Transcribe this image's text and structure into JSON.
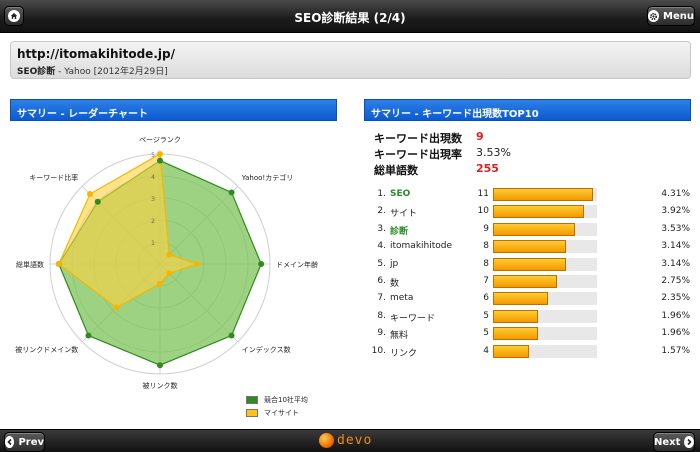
{
  "header": {
    "title": "SEO診断結果 (2/4)",
    "menu_label": "Menu"
  },
  "site": {
    "url": "http://itomakihitode.jp/",
    "subtitle_label": "SEO診断",
    "subtitle_detail": " - Yahoo [2012年2月29日]"
  },
  "sections": {
    "radar_title": "サマリー - レーダーチャート",
    "keywords_title": "サマリー - キーワード出現数TOP10"
  },
  "chart_data": {
    "type": "radar",
    "categories": [
      "ページランク",
      "Yahoo!カテゴリ",
      "ドメイン年齢",
      "インデックス数",
      "被リンク数",
      "被リンクドメイン数",
      "総単語数",
      "キーワード比率"
    ],
    "ticks": [
      "1",
      "2",
      "3",
      "4",
      "5"
    ],
    "rmax": 5,
    "series": [
      {
        "name": "競合10社平均",
        "values": [
          4.7,
          4.6,
          4.6,
          4.6,
          4.6,
          4.6,
          4.6,
          4.0
        ],
        "color": "#2f8a1f",
        "fill": "#7cc35a"
      },
      {
        "name": "マイサイト",
        "values": [
          5.0,
          0.6,
          1.7,
          0.6,
          0.9,
          2.8,
          4.6,
          4.5
        ],
        "color": "#f7b500",
        "fill": "#ffd23f"
      }
    ]
  },
  "stats": [
    {
      "label": "キーワード出現数",
      "value": "9",
      "highlight": true
    },
    {
      "label": "キーワード出現率",
      "value": "3.53%",
      "highlight": false
    },
    {
      "label": "総単語数",
      "value": "255",
      "highlight": true
    }
  ],
  "keywords": {
    "max_count": 11,
    "rows": [
      {
        "rank": "1.",
        "word": "SEO",
        "count": 11,
        "count_label": "11",
        "pct": "4.31%",
        "is_keyword": true
      },
      {
        "rank": "2.",
        "word": "サイト",
        "count": 10,
        "count_label": "10",
        "pct": "3.92%",
        "is_keyword": false
      },
      {
        "rank": "3.",
        "word": "診断",
        "count": 9,
        "count_label": "9",
        "pct": "3.53%",
        "is_keyword": true
      },
      {
        "rank": "4.",
        "word": "itomakihitode",
        "count": 8,
        "count_label": "8",
        "pct": "3.14%",
        "is_keyword": false
      },
      {
        "rank": "5.",
        "word": "jp",
        "count": 8,
        "count_label": "8",
        "pct": "3.14%",
        "is_keyword": false
      },
      {
        "rank": "6.",
        "word": "数",
        "count": 7,
        "count_label": "7",
        "pct": "2.75%",
        "is_keyword": false
      },
      {
        "rank": "7.",
        "word": "meta",
        "count": 6,
        "count_label": "6",
        "pct": "2.35%",
        "is_keyword": false
      },
      {
        "rank": "8.",
        "word": "キーワード",
        "count": 5,
        "count_label": "5",
        "pct": "1.96%",
        "is_keyword": false
      },
      {
        "rank": "9.",
        "word": "無料",
        "count": 5,
        "count_label": "5",
        "pct": "1.96%",
        "is_keyword": false
      },
      {
        "rank": "10.",
        "word": "リンク",
        "count": 4,
        "count_label": "4",
        "pct": "1.57%",
        "is_keyword": false
      }
    ]
  },
  "footer": {
    "prev_label": "Prev",
    "next_label": "Next",
    "logo_text": "devo"
  },
  "icons": {
    "home": "home-icon",
    "menu": "gear-icon",
    "prev": "chevron-left-icon",
    "next": "chevron-right-icon"
  }
}
